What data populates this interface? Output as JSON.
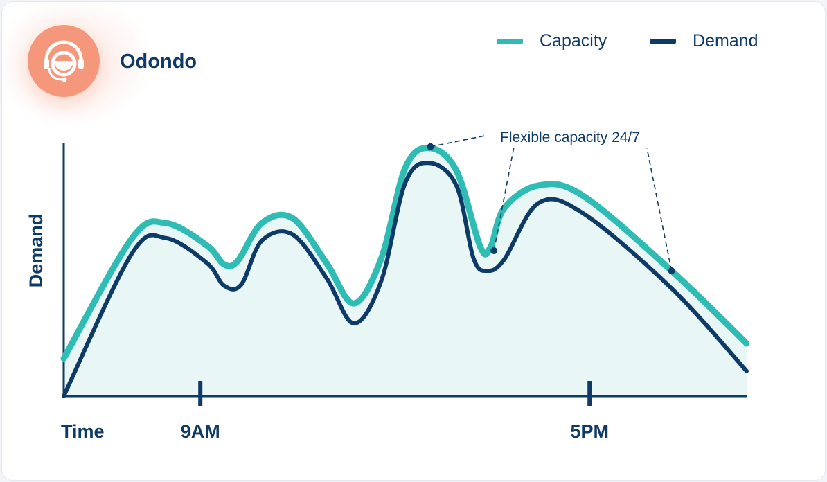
{
  "brand": {
    "name": "Odondo",
    "icon": "headset-support-icon",
    "icon_color": "#f5977a"
  },
  "legend": [
    {
      "label": "Capacity",
      "color": "#2fbcb4"
    },
    {
      "label": "Demand",
      "color": "#0d3a67"
    }
  ],
  "chart_data": {
    "type": "line",
    "title": "",
    "xlabel": "Time",
    "ylabel": "Demand",
    "xlim": [
      0,
      100
    ],
    "ylim": [
      0,
      100
    ],
    "x_ticks": [
      {
        "label": "9AM",
        "x": 20
      },
      {
        "label": "5PM",
        "x": 77
      }
    ],
    "series": [
      {
        "name": "Capacity",
        "color": "#2fbcb4",
        "points": [
          [
            0,
            15
          ],
          [
            10,
            63
          ],
          [
            15,
            69
          ],
          [
            21,
            60
          ],
          [
            23.5,
            52.5
          ],
          [
            25.5,
            54
          ],
          [
            29,
            69
          ],
          [
            33.5,
            71
          ],
          [
            38.5,
            53
          ],
          [
            42.5,
            37
          ],
          [
            46.5,
            55
          ],
          [
            50,
            91
          ],
          [
            53.5,
            99
          ],
          [
            57.5,
            90
          ],
          [
            61,
            59.5
          ],
          [
            62.5,
            59.5
          ],
          [
            64.5,
            75
          ],
          [
            69.5,
            84
          ],
          [
            76,
            80
          ],
          [
            89,
            50
          ],
          [
            100,
            21
          ]
        ]
      },
      {
        "name": "Demand",
        "color": "#0d3a67",
        "points": [
          [
            0,
            0
          ],
          [
            10,
            57
          ],
          [
            15,
            63
          ],
          [
            21,
            53
          ],
          [
            23.5,
            44
          ],
          [
            26,
            44.5
          ],
          [
            29,
            62
          ],
          [
            33.5,
            64.5
          ],
          [
            38.5,
            47
          ],
          [
            42.5,
            29
          ],
          [
            46.5,
            46
          ],
          [
            50,
            85
          ],
          [
            53.5,
            93
          ],
          [
            57.5,
            84
          ],
          [
            60,
            55
          ],
          [
            62,
            50
          ],
          [
            64.5,
            54.5
          ],
          [
            69.5,
            77
          ],
          [
            76,
            73
          ],
          [
            89,
            43
          ],
          [
            100,
            10
          ]
        ]
      }
    ],
    "annotations": [
      {
        "text": "Flexible capacity 24/7",
        "points": [
          [
            53.7,
            99.5
          ],
          [
            63,
            58
          ],
          [
            89,
            50
          ]
        ]
      }
    ],
    "fill_under_capacity": "#e8f6f6"
  }
}
